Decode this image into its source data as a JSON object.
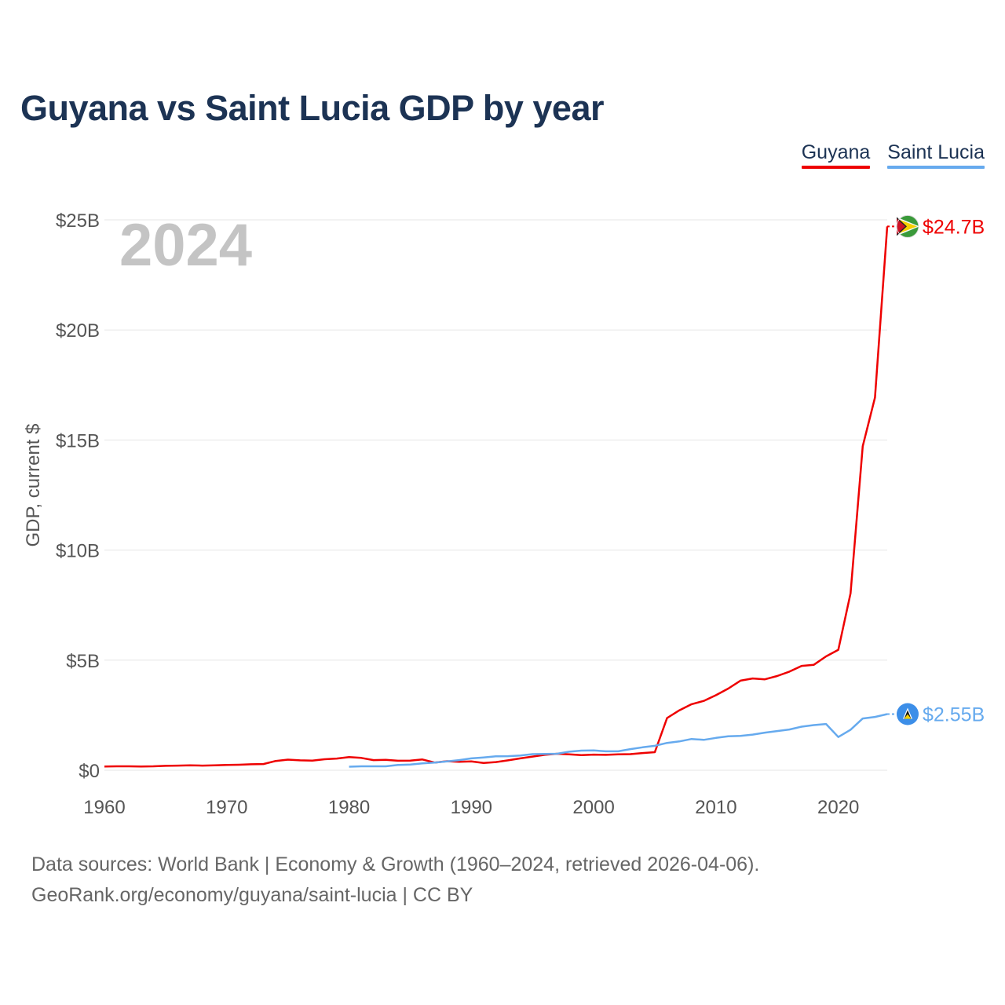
{
  "header": {
    "title": "Guyana vs Saint Lucia GDP by year"
  },
  "footer": {
    "line1": "Data sources: World Bank | Economy & Growth (1960–2024, retrieved 2026-04-06).",
    "line2": "GeoRank.org/economy/guyana/saint-lucia | CC BY"
  },
  "chart_data": {
    "type": "line",
    "title": "Guyana vs Saint Lucia GDP by year",
    "ylabel": "GDP, current $",
    "xlabel": "",
    "year_watermark": "2024",
    "xlim": [
      1960,
      2024
    ],
    "ylim": [
      0,
      25
    ],
    "unit": "billions USD",
    "x_ticks": [
      1960,
      1970,
      1980,
      1990,
      2000,
      2010,
      2020
    ],
    "x_tick_labels": [
      "1960",
      "1970",
      "1980",
      "1990",
      "2000",
      "2010",
      "2020"
    ],
    "y_ticks": [
      0,
      5,
      10,
      15,
      20,
      25
    ],
    "y_tick_labels": [
      "$0",
      "$5B",
      "$10B",
      "$15B",
      "$20B",
      "$25B"
    ],
    "legend_position": "top-right",
    "grid": true,
    "series": [
      {
        "name": "Guyana",
        "color": "#ee0000",
        "end_label": "$24.7B",
        "flag": "guyana-flag",
        "x": [
          1960,
          1961,
          1962,
          1963,
          1964,
          1965,
          1966,
          1967,
          1968,
          1969,
          1970,
          1971,
          1972,
          1973,
          1974,
          1975,
          1976,
          1977,
          1978,
          1979,
          1980,
          1981,
          1982,
          1983,
          1984,
          1985,
          1986,
          1987,
          1988,
          1989,
          1990,
          1991,
          1992,
          1993,
          1994,
          1995,
          1996,
          1997,
          1998,
          1999,
          2000,
          2001,
          2002,
          2003,
          2004,
          2005,
          2006,
          2007,
          2008,
          2009,
          2010,
          2011,
          2012,
          2013,
          2014,
          2015,
          2016,
          2017,
          2018,
          2019,
          2020,
          2021,
          2022,
          2023,
          2024
        ],
        "values": [
          0.17,
          0.18,
          0.18,
          0.17,
          0.18,
          0.2,
          0.21,
          0.22,
          0.21,
          0.22,
          0.24,
          0.25,
          0.27,
          0.28,
          0.42,
          0.48,
          0.45,
          0.44,
          0.5,
          0.53,
          0.6,
          0.56,
          0.46,
          0.47,
          0.43,
          0.44,
          0.49,
          0.35,
          0.41,
          0.38,
          0.4,
          0.33,
          0.37,
          0.45,
          0.54,
          0.62,
          0.7,
          0.75,
          0.72,
          0.69,
          0.71,
          0.7,
          0.72,
          0.73,
          0.78,
          0.82,
          2.37,
          2.72,
          3.0,
          3.15,
          3.41,
          3.71,
          4.07,
          4.17,
          4.13,
          4.28,
          4.48,
          4.74,
          4.79,
          5.17,
          5.47,
          8.04,
          14.72,
          16.93,
          24.7
        ]
      },
      {
        "name": "Saint Lucia",
        "color": "#66aaee",
        "end_label": "$2.55B",
        "flag": "saint-lucia-flag",
        "x": [
          1980,
          1981,
          1982,
          1983,
          1984,
          1985,
          1986,
          1987,
          1988,
          1989,
          1990,
          1991,
          1992,
          1993,
          1994,
          1995,
          1996,
          1997,
          1998,
          1999,
          2000,
          2001,
          2002,
          2003,
          2004,
          2005,
          2006,
          2007,
          2008,
          2009,
          2010,
          2011,
          2012,
          2013,
          2014,
          2015,
          2016,
          2017,
          2018,
          2019,
          2020,
          2021,
          2022,
          2023,
          2024
        ],
        "values": [
          0.16,
          0.18,
          0.18,
          0.18,
          0.24,
          0.26,
          0.31,
          0.35,
          0.4,
          0.46,
          0.54,
          0.58,
          0.63,
          0.64,
          0.67,
          0.73,
          0.74,
          0.75,
          0.84,
          0.89,
          0.9,
          0.86,
          0.86,
          0.96,
          1.04,
          1.11,
          1.24,
          1.31,
          1.42,
          1.38,
          1.47,
          1.54,
          1.56,
          1.62,
          1.71,
          1.78,
          1.85,
          1.98,
          2.05,
          2.1,
          1.51,
          1.84,
          2.35,
          2.42,
          2.55
        ]
      }
    ]
  }
}
